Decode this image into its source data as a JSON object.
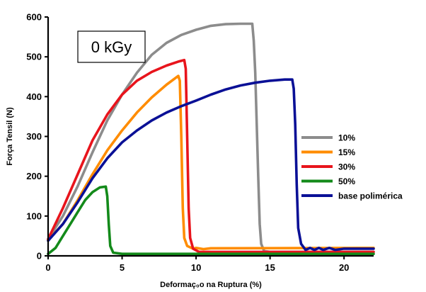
{
  "chart_data": {
    "type": "line",
    "annotation": "0 kGy",
    "xlabel": "Deformaç₀o na Ruptura (%)",
    "ylabel": "Força Tensil (N)",
    "xlim": [
      0,
      22
    ],
    "ylim": [
      0,
      600
    ],
    "xticks": [
      0,
      5,
      10,
      15,
      20
    ],
    "yticks": [
      0,
      100,
      200,
      300,
      400,
      500,
      600
    ],
    "grid": false,
    "legend_position": "right",
    "series": [
      {
        "name": "10%",
        "color": "#8c8c8c",
        "points": [
          [
            0,
            42
          ],
          [
            1,
            100
          ],
          [
            2,
            175
          ],
          [
            3,
            260
          ],
          [
            4,
            340
          ],
          [
            5,
            405
          ],
          [
            6,
            460
          ],
          [
            7,
            505
          ],
          [
            8,
            535
          ],
          [
            9,
            555
          ],
          [
            10,
            568
          ],
          [
            11,
            578
          ],
          [
            12,
            582
          ],
          [
            13,
            583
          ],
          [
            13.8,
            583
          ],
          [
            13.9,
            540
          ],
          [
            14.0,
            460
          ],
          [
            14.1,
            330
          ],
          [
            14.2,
            200
          ],
          [
            14.3,
            80
          ],
          [
            14.4,
            30
          ],
          [
            14.6,
            12
          ],
          [
            15,
            10
          ],
          [
            22,
            10
          ]
        ]
      },
      {
        "name": "15%",
        "color": "#ff8c00",
        "points": [
          [
            0,
            40
          ],
          [
            1,
            80
          ],
          [
            2,
            140
          ],
          [
            3,
            205
          ],
          [
            4,
            265
          ],
          [
            5,
            315
          ],
          [
            6,
            360
          ],
          [
            7,
            398
          ],
          [
            8,
            430
          ],
          [
            8.8,
            452
          ],
          [
            8.9,
            440
          ],
          [
            9.0,
            300
          ],
          [
            9.1,
            120
          ],
          [
            9.2,
            45
          ],
          [
            9.4,
            25
          ],
          [
            9.8,
            18
          ],
          [
            10,
            20
          ],
          [
            10.5,
            17
          ],
          [
            11,
            19
          ],
          [
            22,
            20
          ]
        ]
      },
      {
        "name": "30%",
        "color": "#e8141c",
        "points": [
          [
            0,
            42
          ],
          [
            1,
            120
          ],
          [
            2,
            205
          ],
          [
            3,
            290
          ],
          [
            4,
            355
          ],
          [
            5,
            405
          ],
          [
            6,
            440
          ],
          [
            7,
            462
          ],
          [
            8,
            478
          ],
          [
            8.8,
            488
          ],
          [
            9.2,
            492
          ],
          [
            9.3,
            470
          ],
          [
            9.4,
            300
          ],
          [
            9.5,
            120
          ],
          [
            9.6,
            45
          ],
          [
            9.8,
            18
          ],
          [
            10.2,
            10
          ],
          [
            11,
            10
          ],
          [
            22,
            10
          ]
        ]
      },
      {
        "name": "50%",
        "color": "#138a1a",
        "points": [
          [
            0,
            5
          ],
          [
            0.5,
            20
          ],
          [
            1,
            50
          ],
          [
            1.5,
            80
          ],
          [
            2,
            110
          ],
          [
            2.5,
            140
          ],
          [
            3,
            160
          ],
          [
            3.5,
            172
          ],
          [
            3.9,
            174
          ],
          [
            4.0,
            150
          ],
          [
            4.1,
            80
          ],
          [
            4.2,
            25
          ],
          [
            4.4,
            8
          ],
          [
            5,
            5
          ],
          [
            22,
            5
          ]
        ]
      },
      {
        "name": "base polimérica",
        "color": "#0a1096",
        "points": [
          [
            0,
            38
          ],
          [
            1,
            80
          ],
          [
            2,
            135
          ],
          [
            3,
            195
          ],
          [
            4,
            245
          ],
          [
            5,
            285
          ],
          [
            6,
            315
          ],
          [
            7,
            340
          ],
          [
            8,
            360
          ],
          [
            9,
            376
          ],
          [
            10,
            390
          ],
          [
            11,
            405
          ],
          [
            12,
            418
          ],
          [
            13,
            428
          ],
          [
            14,
            435
          ],
          [
            15,
            440
          ],
          [
            16,
            443
          ],
          [
            16.5,
            443
          ],
          [
            16.6,
            420
          ],
          [
            16.7,
            330
          ],
          [
            16.8,
            180
          ],
          [
            16.9,
            70
          ],
          [
            17.1,
            30
          ],
          [
            17.4,
            15
          ],
          [
            17.7,
            20
          ],
          [
            18,
            15
          ],
          [
            18.3,
            20
          ],
          [
            18.6,
            15
          ],
          [
            19,
            20
          ],
          [
            19.4,
            15
          ],
          [
            20,
            18
          ],
          [
            22,
            18
          ]
        ]
      }
    ]
  }
}
